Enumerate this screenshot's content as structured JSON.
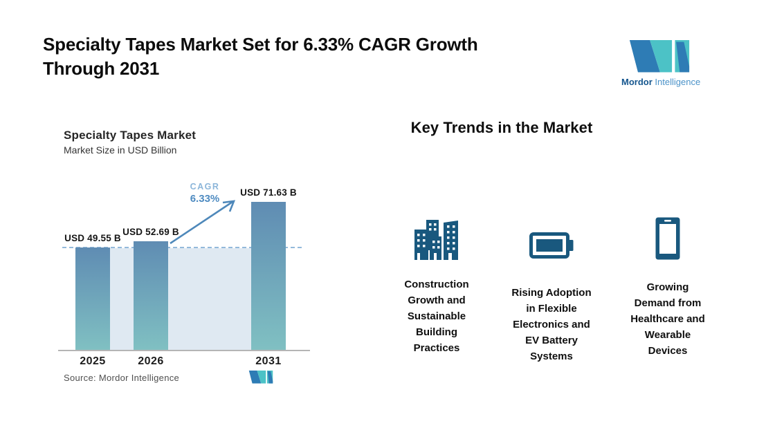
{
  "header": {
    "title": "Specialty Tapes Market Set for 6.33% CAGR Growth\nThrough 2031"
  },
  "brand": {
    "name_primary": "Mordor",
    "name_secondary": "Intelligence",
    "logo_blue": "#2e7cb5",
    "logo_teal": "#4cc2c6"
  },
  "chart_data": {
    "type": "bar",
    "title": "Specialty Tapes Market",
    "subtitle": "Market Size in USD Billion",
    "unit": "USD Billion",
    "categories": [
      "2025",
      "2026",
      "2031"
    ],
    "values": [
      49.55,
      52.69,
      71.63
    ],
    "value_labels": [
      "USD 49.55 B",
      "USD 52.69 B",
      "USD 71.63 B"
    ],
    "ylim": [
      0,
      75
    ],
    "reference_line_value": 49.55,
    "cagr": {
      "label": "CAGR",
      "value": "6.33%"
    },
    "source": "Source: Mordor Intelligence",
    "grid": false,
    "legend": false,
    "colors": {
      "bar_gradient_top": "#5f8cb3",
      "bar_gradient_bottom": "#80c0c2",
      "plot_fill": "#dfe9f2",
      "dash_line": "#94badb",
      "arrow": "#4e88ba"
    }
  },
  "trends": {
    "heading": "Key Trends in the Market",
    "items": [
      {
        "icon": "buildings-icon",
        "text": "Construction\nGrowth and\nSustainable\nBuilding\nPractices"
      },
      {
        "icon": "battery-icon",
        "text": "Rising Adoption\nin Flexible\nElectronics and\nEV Battery\nSystems"
      },
      {
        "icon": "smartphone-icon",
        "text": "Growing\nDemand from\nHealthcare and\nWearable\nDevices"
      }
    ]
  }
}
